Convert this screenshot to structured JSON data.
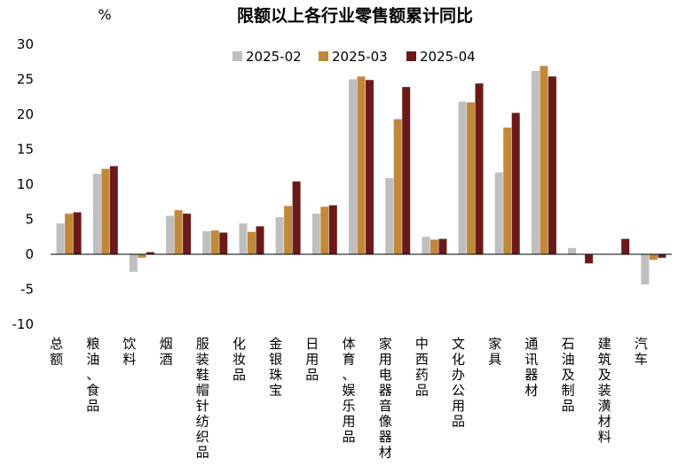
{
  "chart_data": {
    "type": "bar",
    "title": "限额以上各行业零售额累计同比",
    "unit": "%",
    "ylim": [
      -10,
      30
    ],
    "yticks": [
      30,
      25,
      20,
      15,
      10,
      5,
      0,
      -5,
      -10
    ],
    "grid": false,
    "legend_position": "top",
    "categories": [
      "总额",
      "粮油、食品",
      "饮料",
      "烟酒",
      "服装鞋帽针纺织品",
      "化妆品",
      "金银珠宝",
      "日用品",
      "体育、娱乐用品",
      "家用电器音像器材",
      "中西药品",
      "文化办公用品",
      "家具",
      "通讯器材",
      "石油及制品",
      "建筑及装潢材料",
      "汽车"
    ],
    "series": [
      {
        "name": "2025-02",
        "color": "#bfbfbf",
        "values": [
          4.4,
          11.5,
          -2.5,
          5.5,
          3.3,
          4.4,
          5.3,
          5.8,
          25.0,
          10.9,
          2.5,
          21.8,
          11.7,
          26.2,
          0.9,
          0.0,
          -4.3
        ]
      },
      {
        "name": "2025-03",
        "color": "#c0883a",
        "values": [
          5.8,
          12.2,
          -0.5,
          6.3,
          3.4,
          3.2,
          6.9,
          6.8,
          25.4,
          19.3,
          2.1,
          21.7,
          18.1,
          26.9,
          0.0,
          0.0,
          -0.8
        ]
      },
      {
        "name": "2025-04",
        "color": "#6b1a1a",
        "values": [
          6.0,
          12.6,
          0.3,
          5.8,
          3.1,
          4.0,
          10.4,
          7.0,
          24.9,
          23.9,
          2.2,
          24.4,
          20.2,
          25.4,
          -1.3,
          2.2,
          -0.5
        ]
      }
    ]
  }
}
